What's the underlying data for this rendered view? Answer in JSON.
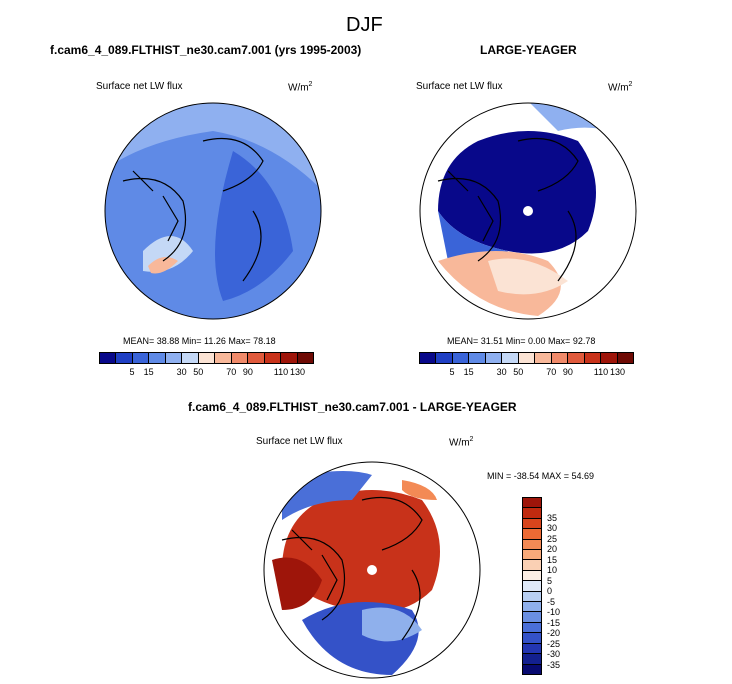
{
  "season": "DJF",
  "panels": [
    {
      "title": "f.cam6_4_089.FLTHIST_ne30.cam7.001 (yrs 1995-2003)",
      "variable": "Surface net LW flux",
      "units": "W/m",
      "units_sup": "2",
      "stats": "MEAN= 38.88 Min= 11.26 Max= 78.18"
    },
    {
      "title": "LARGE-YEAGER",
      "variable": "Surface net LW flux",
      "units": "W/m",
      "units_sup": "2",
      "stats": "MEAN= 31.51 Min= 0.00 Max= 92.78"
    },
    {
      "title": "f.cam6_4_089.FLTHIST_ne30.cam7.001 - LARGE-YEAGER",
      "variable": "Surface net LW flux",
      "units": "W/m",
      "units_sup": "2",
      "stats": "MIN = -38.54 MAX = 54.69"
    }
  ],
  "colorbar_abs": {
    "colors": [
      "#08088a",
      "#1f3fc4",
      "#3a64d8",
      "#5f8ae6",
      "#8fb0f0",
      "#c4d8f6",
      "#fbe3d4",
      "#f8b89a",
      "#f08a6a",
      "#e05a3c",
      "#c8321a",
      "#9e150a",
      "#6e0a04"
    ],
    "ticks": [
      "5",
      "15",
      "30",
      "50",
      "70",
      "90",
      "110",
      "130"
    ]
  },
  "colorbar_diff": {
    "colors": [
      "#9e150a",
      "#c02a0f",
      "#d8451c",
      "#ec6a34",
      "#f38a55",
      "#f8aa7a",
      "#fad0b4",
      "#fbeee4",
      "#dfe9f8",
      "#b8cff2",
      "#8fb0ec",
      "#6a8fe2",
      "#4a6fd8",
      "#3452c8",
      "#2336b2",
      "#13208f",
      "#080a70"
    ],
    "ticks": [
      "35",
      "30",
      "25",
      "20",
      "15",
      "10",
      "5",
      "0",
      "-5",
      "-10",
      "-15",
      "-20",
      "-25",
      "-30",
      "-35"
    ]
  },
  "map_fills": {
    "panel1": [
      "#5f8ae6",
      "#8fb0f0",
      "#3a64d8",
      "#c4d8f6",
      "#f8b89a"
    ],
    "panel2": [
      "#08088a",
      "#3a64d8",
      "#8fb0f0",
      "#f8b89a",
      "#fbe3d4",
      "#ffffff"
    ],
    "panel3": [
      "#c8321a",
      "#e05a3c",
      "#9e150a",
      "#8fb0ec",
      "#3452c8",
      "#4a6fd8",
      "#f38a55",
      "#ffffff"
    ]
  }
}
